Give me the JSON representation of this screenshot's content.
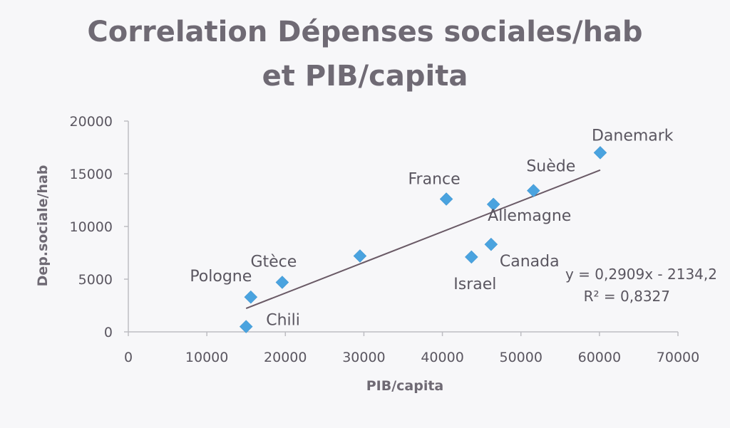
{
  "chart_data": {
    "type": "scatter",
    "title": [
      "Correlation Dépenses sociales/hab",
      "et PIB/capita"
    ],
    "xlabel": "PIB/capita",
    "ylabel": "Dep.sociale/hab",
    "xlim": [
      0,
      70000
    ],
    "ylim": [
      0,
      20000
    ],
    "xticks": [
      "0",
      "10000",
      "20000",
      "30000",
      "40000",
      "50000",
      "60000",
      "70000"
    ],
    "yticks": [
      "0",
      "5000",
      "10000",
      "15000",
      "20000"
    ],
    "grid": false,
    "marker_color": "#4aa3df",
    "trendline_color": "#6a5a66",
    "points": [
      {
        "label": "Chili",
        "x": 15000,
        "y": 500
      },
      {
        "label": "Pologne",
        "x": 15600,
        "y": 3300
      },
      {
        "label": "Gtèce",
        "x": 19600,
        "y": 4700
      },
      {
        "label": "",
        "x": 29500,
        "y": 7200
      },
      {
        "label": "France",
        "x": 40500,
        "y": 12600
      },
      {
        "label": "Israel",
        "x": 43700,
        "y": 7100
      },
      {
        "label": "Canada",
        "x": 46200,
        "y": 8300
      },
      {
        "label": "Allemagne",
        "x": 46500,
        "y": 12100
      },
      {
        "label": "Suède",
        "x": 51600,
        "y": 13400
      },
      {
        "label": "Danemark",
        "x": 60100,
        "y": 17000
      }
    ],
    "trendline": {
      "slope": 0.2909,
      "intercept": -2134.2,
      "x_range": [
        15000,
        60100
      ],
      "equation": "y = 0,2909x - 2134,2",
      "r2": "R² = 0,8327"
    }
  }
}
